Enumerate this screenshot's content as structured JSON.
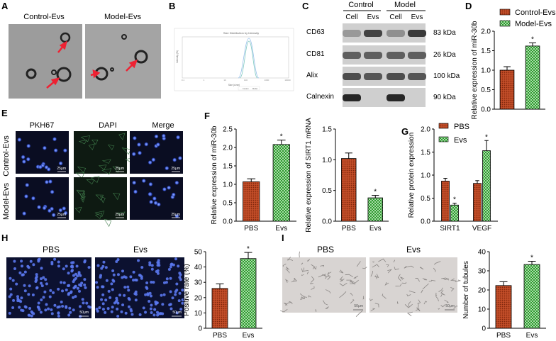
{
  "panels": {
    "A": {
      "letter": "A",
      "label_control": "Control-Evs",
      "label_model": "Model-Evs"
    },
    "B": {
      "letter": "B",
      "title": "Size Distribution by Intensity",
      "ylabel": "Intensity (%)",
      "xlabel": "Size (d.nm)",
      "ticks": [
        "0.1",
        "1",
        "10",
        "100",
        "1000",
        "10000"
      ],
      "legend": [
        "Control",
        "Model"
      ]
    },
    "C": {
      "letter": "C",
      "group_control": "Control",
      "group_model": "Model",
      "lanes": [
        "Cell",
        "Evs",
        "Cell",
        "Evs"
      ],
      "bands": [
        {
          "name": "CD63",
          "kda": "83 kDa"
        },
        {
          "name": "CD81",
          "kda": "26 kDa"
        },
        {
          "name": "Alix",
          "kda": "100 kDa"
        },
        {
          "name": "Calnexin",
          "kda": "90 kDa"
        }
      ]
    },
    "E": {
      "letter": "E",
      "cols": [
        "PKH67",
        "DAPI",
        "Merge"
      ],
      "rows": [
        "Control-Evs",
        "Model-Evs"
      ],
      "scale": "25μm"
    },
    "H": {
      "letter": "H",
      "labels": [
        "PBS",
        "Evs"
      ],
      "scale": "50μm"
    },
    "I": {
      "letter": "I",
      "labels": [
        "PBS",
        "Evs"
      ],
      "scale": "50μm"
    }
  },
  "colors": {
    "pbs": "#b5421e",
    "evs": "#2e9a2e"
  },
  "chart_data": [
    {
      "id": "D",
      "type": "bar",
      "letter": "D",
      "categories": [
        "Control-Evs",
        "Model-Evs"
      ],
      "legend": [
        "Control-Evs",
        "Model-Evs"
      ],
      "values": [
        1.0,
        1.62
      ],
      "errors": [
        0.09,
        0.08
      ],
      "sig": [
        false,
        true
      ],
      "ylabel": "Relative expression of miR-30b",
      "ylim": [
        0,
        2.0
      ],
      "yticks": [
        "0.0",
        "0.5",
        "1.0",
        "1.5",
        "2.0"
      ]
    },
    {
      "id": "F1",
      "type": "bar",
      "letter": "F",
      "categories": [
        "PBS",
        "Evs"
      ],
      "values": [
        1.07,
        2.08
      ],
      "errors": [
        0.08,
        0.12
      ],
      "sig": [
        false,
        true
      ],
      "ylabel": "Relative expression of miR-30b",
      "ylim": [
        0,
        2.5
      ],
      "yticks": [
        "0.0",
        "0.5",
        "1.0",
        "1.5",
        "2.0",
        "2.5"
      ]
    },
    {
      "id": "F2",
      "type": "bar",
      "categories": [
        "PBS",
        "Evs"
      ],
      "values": [
        1.02,
        0.38
      ],
      "errors": [
        0.09,
        0.04
      ],
      "sig": [
        false,
        true
      ],
      "ylabel": "Relative expression of SIRT1 mRNA",
      "ylim": [
        0,
        1.5
      ],
      "yticks": [
        "0.0",
        "0.5",
        "1.0",
        "1.5"
      ]
    },
    {
      "id": "G",
      "type": "bar",
      "letter": "G",
      "categories": [
        "SIRT1",
        "VEGF"
      ],
      "series": [
        {
          "name": "PBS",
          "values": [
            0.87,
            0.82
          ],
          "errors": [
            0.06,
            0.06
          ]
        },
        {
          "name": "Evs",
          "values": [
            0.35,
            1.53
          ],
          "errors": [
            0.04,
            0.22
          ]
        }
      ],
      "sig": [
        [
          false,
          true
        ],
        [
          false,
          true
        ]
      ],
      "ylabel": "Relative protein expression",
      "ylim": [
        0,
        2.0
      ],
      "yticks": [
        "0.0",
        "0.5",
        "1.0",
        "1.5",
        "2.0"
      ]
    },
    {
      "id": "H",
      "type": "bar",
      "categories": [
        "PBS",
        "Evs"
      ],
      "values": [
        26,
        45.5
      ],
      "errors": [
        3,
        4
      ],
      "sig": [
        false,
        true
      ],
      "ylabel": "Positive rate (%)",
      "ylim": [
        0,
        50
      ],
      "yticks": [
        "0",
        "10",
        "20",
        "30",
        "40",
        "50"
      ]
    },
    {
      "id": "I",
      "type": "bar",
      "categories": [
        "PBS",
        "Evs"
      ],
      "values": [
        22.3,
        33.3
      ],
      "errors": [
        2,
        1.7
      ],
      "sig": [
        false,
        true
      ],
      "ylabel": "Number of tubules",
      "ylim": [
        0,
        40
      ],
      "yticks": [
        "0",
        "10",
        "20",
        "30",
        "40"
      ]
    }
  ]
}
